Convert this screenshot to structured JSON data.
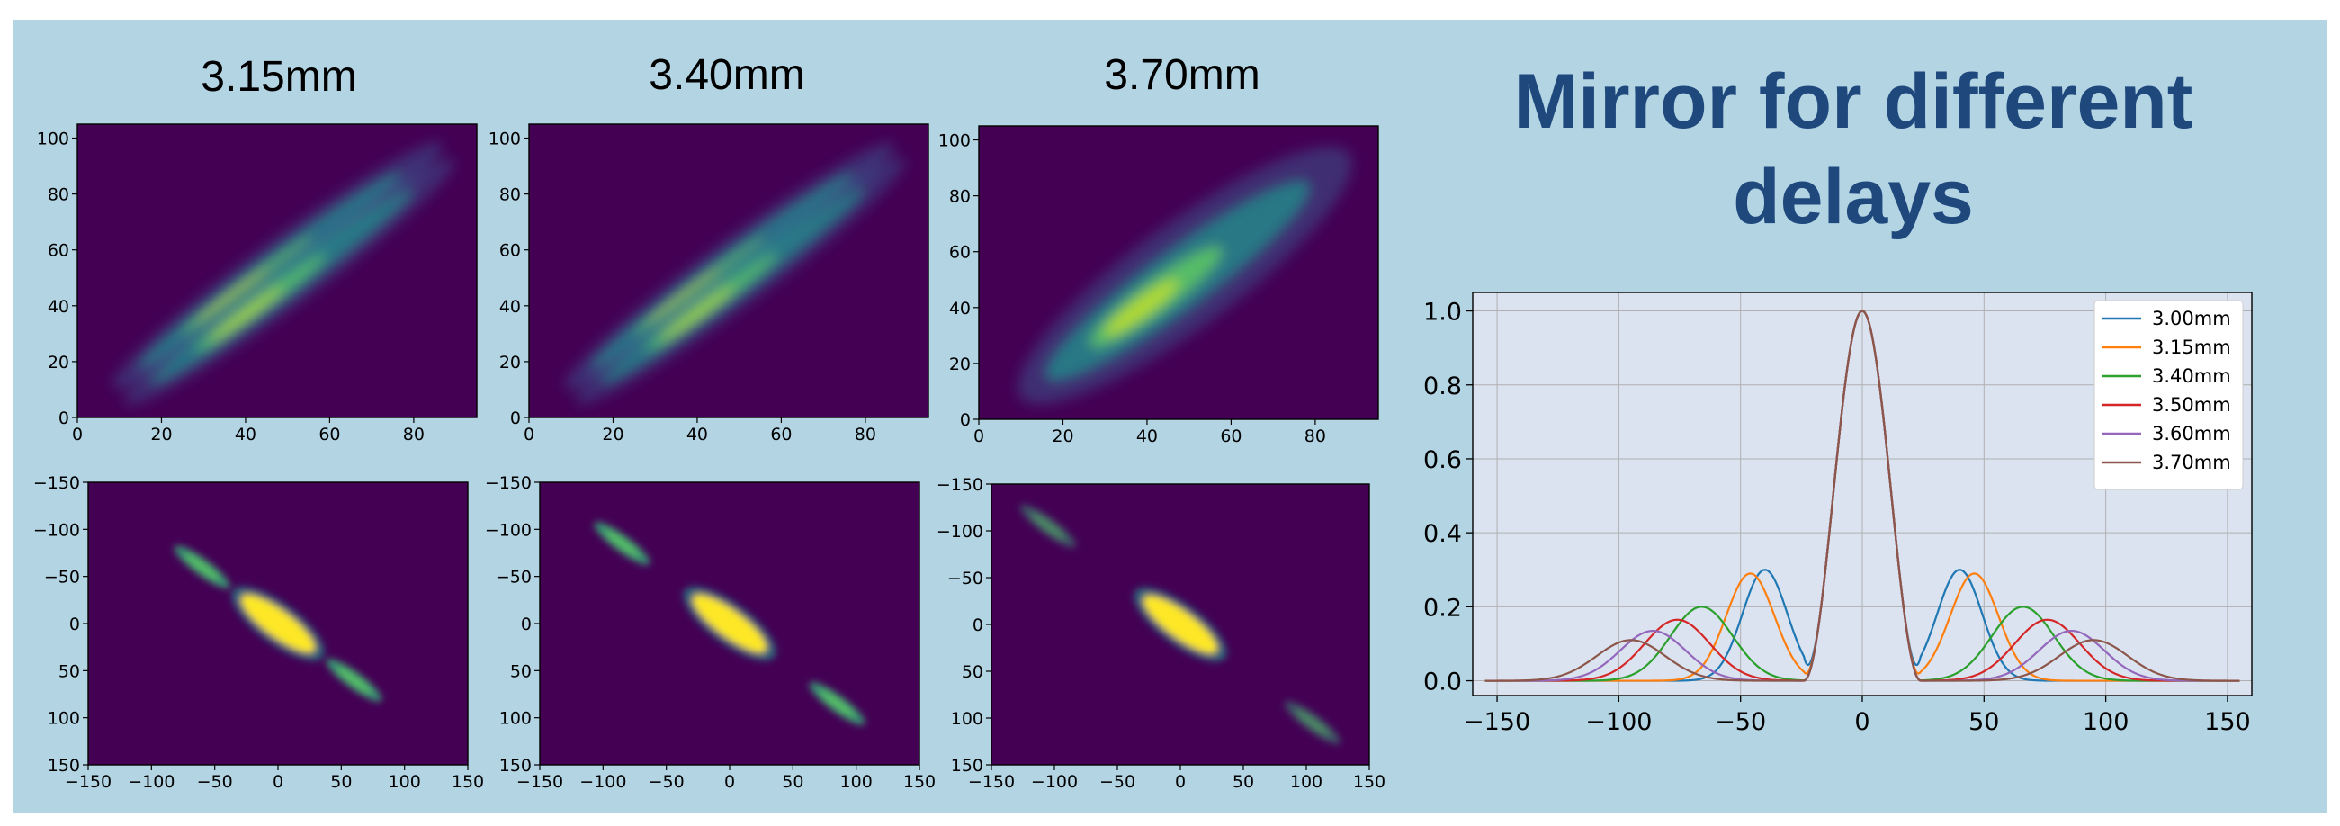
{
  "slide": {
    "title": "Mirror for different delays",
    "panel_titles": [
      "3.15mm",
      "3.40mm",
      "3.70mm"
    ]
  },
  "chart_data": [
    {
      "type": "heatmap",
      "title": "3.15mm",
      "xlim": [
        0,
        95
      ],
      "ylim": [
        0,
        105
      ],
      "xticks": [
        0,
        20,
        40,
        60,
        80
      ],
      "yticks": [
        0,
        20,
        40,
        60,
        80,
        100
      ],
      "colormap": "viridis",
      "pattern": "two parallel diagonal stripes",
      "background_color": "#440154"
    },
    {
      "type": "heatmap",
      "title": "3.40mm",
      "xlim": [
        0,
        95
      ],
      "ylim": [
        0,
        105
      ],
      "xticks": [
        0,
        20,
        40,
        60,
        80
      ],
      "yticks": [
        0,
        20,
        40,
        60,
        80,
        100
      ],
      "colormap": "viridis",
      "pattern": "two parallel diagonal stripes",
      "background_color": "#440154"
    },
    {
      "type": "heatmap",
      "title": "3.70mm",
      "xlim": [
        0,
        95
      ],
      "ylim": [
        0,
        105
      ],
      "xticks": [
        0,
        20,
        40,
        60,
        80
      ],
      "yticks": [
        0,
        20,
        40,
        60,
        80,
        100
      ],
      "colormap": "viridis",
      "pattern": "single broad diagonal stripe",
      "background_color": "#440154"
    },
    {
      "type": "heatmap",
      "xlim": [
        -150,
        150
      ],
      "ylim": [
        150,
        -150
      ],
      "xticks": [
        -150,
        -100,
        -50,
        0,
        50,
        100,
        150
      ],
      "yticks": [
        -150,
        -100,
        -50,
        0,
        50,
        100,
        150
      ],
      "colormap": "viridis",
      "pattern": "central peak with side lobes at about 60 along the anti-diagonal",
      "background_color": "#440154"
    },
    {
      "type": "heatmap",
      "xlim": [
        -150,
        150
      ],
      "ylim": [
        150,
        -150
      ],
      "xticks": [
        -150,
        -100,
        -50,
        0,
        50,
        100,
        150
      ],
      "yticks": [
        -150,
        -100,
        -50,
        0,
        50,
        100,
        150
      ],
      "colormap": "viridis",
      "pattern": "central peak with side lobes at about 85 along the anti-diagonal",
      "background_color": "#440154"
    },
    {
      "type": "heatmap",
      "xlim": [
        -150,
        150
      ],
      "ylim": [
        150,
        -150
      ],
      "xticks": [
        -150,
        -100,
        -50,
        0,
        50,
        100,
        150
      ],
      "yticks": [
        -150,
        -100,
        -50,
        0,
        50,
        100,
        150
      ],
      "colormap": "viridis",
      "pattern": "central peak with faint side lobes at about 105 along the anti-diagonal",
      "background_color": "#440154"
    },
    {
      "type": "line",
      "xlim": [
        -160,
        160
      ],
      "ylim": [
        -0.04,
        1.05
      ],
      "xticks": [
        -150,
        -100,
        -50,
        0,
        50,
        100,
        150
      ],
      "yticks": [
        0.0,
        0.2,
        0.4,
        0.6,
        0.8,
        1.0
      ],
      "grid": true,
      "legend_position": "top-right",
      "series": [
        {
          "name": "3.00mm",
          "color": "#1f77b4",
          "peak_width": 24,
          "side_lobe_x": 40,
          "side_lobe_y": 0.3,
          "side_lobe_width": 13
        },
        {
          "name": "3.15mm",
          "color": "#ff7f0e",
          "peak_width": 24,
          "side_lobe_x": 46,
          "side_lobe_y": 0.29,
          "side_lobe_width": 14
        },
        {
          "name": "3.40mm",
          "color": "#2ca02c",
          "peak_width": 24,
          "side_lobe_x": 66,
          "side_lobe_y": 0.2,
          "side_lobe_width": 18
        },
        {
          "name": "3.50mm",
          "color": "#d62728",
          "peak_width": 24,
          "side_lobe_x": 76,
          "side_lobe_y": 0.165,
          "side_lobe_width": 19
        },
        {
          "name": "3.60mm",
          "color": "#9467bd",
          "peak_width": 24,
          "side_lobe_x": 86,
          "side_lobe_y": 0.135,
          "side_lobe_width": 19
        },
        {
          "name": "3.70mm",
          "color": "#8c564b",
          "peak_width": 24,
          "side_lobe_x": 95,
          "side_lobe_y": 0.11,
          "side_lobe_width": 20
        }
      ]
    }
  ]
}
